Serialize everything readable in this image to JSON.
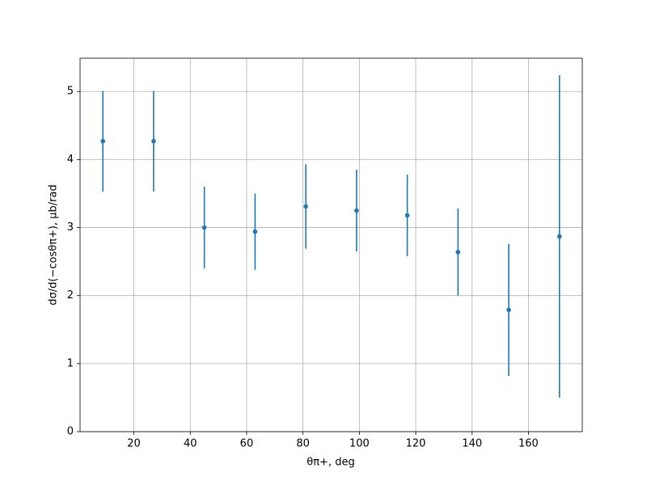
{
  "chart_data": {
    "type": "errorbar",
    "x_label": "θπ+, deg",
    "y_label": "dσ/d(−cosθπ+), μb/rad",
    "x": [
      9,
      27,
      45,
      63,
      81,
      99,
      117,
      135,
      153,
      171
    ],
    "values": [
      4.27,
      4.27,
      3.0,
      2.94,
      3.31,
      3.25,
      3.18,
      2.64,
      1.79,
      2.87
    ],
    "errors": [
      0.74,
      0.74,
      0.6,
      0.56,
      0.62,
      0.6,
      0.6,
      0.64,
      0.97,
      2.37
    ],
    "color": "#1f77b4",
    "xlim": [
      0.9,
      179.1
    ],
    "ylim": [
      0,
      5.49
    ],
    "xticks": [
      20,
      40,
      60,
      80,
      100,
      120,
      140,
      160
    ],
    "yticks": [
      0,
      1,
      2,
      3,
      4,
      5
    ],
    "grid": true
  }
}
